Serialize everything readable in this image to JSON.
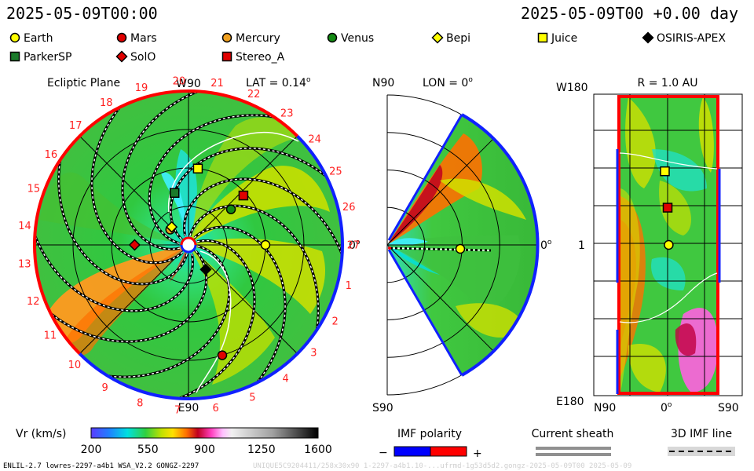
{
  "header": {
    "timestamp_left": "2025-05-09T00:00",
    "timestamp_right": "2025-05-09T00 +0.00 day"
  },
  "legend": {
    "items": [
      {
        "name": "Earth",
        "marker": "circle",
        "color": "#ffff00"
      },
      {
        "name": "Mars",
        "marker": "circle",
        "color": "#e00000"
      },
      {
        "name": "Mercury",
        "marker": "circle",
        "color": "#f0a020"
      },
      {
        "name": "Venus",
        "marker": "circle",
        "color": "#138a13"
      },
      {
        "name": "Bepi",
        "marker": "diamond",
        "color": "#ffff00"
      },
      {
        "name": "Juice",
        "marker": "square",
        "color": "#ffff00"
      },
      {
        "name": "OSIRIS-APEX",
        "marker": "diamond",
        "color": "#000000"
      },
      {
        "name": "ParkerSP",
        "marker": "square",
        "color": "#1a7a2a"
      },
      {
        "name": "SolO",
        "marker": "diamond",
        "color": "#e00000"
      },
      {
        "name": "Stereo_A",
        "marker": "square",
        "color": "#e00000"
      }
    ]
  },
  "panels": {
    "ecliptic": {
      "title": "Ecliptic Plane",
      "lat_label": "LAT = 0.14",
      "lat_degree": "o",
      "top_label": "W90",
      "bottom_label": "E90",
      "right_label": "0",
      "right_degree": "o",
      "carrington_numbers": [
        "1",
        "2",
        "3",
        "4",
        "5",
        "6",
        "7",
        "8",
        "9",
        "10",
        "11",
        "12",
        "13",
        "14",
        "15",
        "16",
        "17",
        "18",
        "19",
        "20",
        "21",
        "22",
        "23",
        "24",
        "25",
        "26",
        "27"
      ]
    },
    "meridional": {
      "lon_label": "LON = 0",
      "lon_degree": "o",
      "top_label": "N90",
      "bottom_label": "S90",
      "right_label": "0",
      "right_degree": "o"
    },
    "map": {
      "title": "R = 1.0 AU",
      "top_left_label": "W180",
      "bottom_left_label": "E180",
      "mid_left_label": "1",
      "bottom_labels": [
        "N90",
        "0",
        "S90"
      ],
      "bottom_mid_degree": "o"
    }
  },
  "colorbar": {
    "label": "Vr (km/s)",
    "ticks": [
      "200",
      "550",
      "900",
      "1250",
      "1600"
    ],
    "range": [
      200,
      1600
    ]
  },
  "imf_polarity": {
    "label": "IMF polarity",
    "minus": "−",
    "plus": "+",
    "neg_color": "#0000ff",
    "pos_color": "#ff0000"
  },
  "current_sheath": {
    "label": "Current sheath"
  },
  "imf_line": {
    "label": "3D IMF line"
  },
  "footer": {
    "model_info": "ENLIL-2.7 lowres-2297-a4b1 WSA_V2.2 GONGZ-2297",
    "run_info": "UNIQUE5C9204411/258x30x90 1-2297-a4b1.10-...ufrmd-1g53d5d2.gongz-2025-05-09T00   2025-05-09"
  },
  "chart_data": [
    {
      "type": "heatmap",
      "panel": "ecliptic-plane",
      "title": "Ecliptic Plane",
      "lat_deg": 0.14,
      "bodies": [
        {
          "name": "Earth",
          "r_au": 1.0,
          "lon_deg": 0
        },
        {
          "name": "Mercury",
          "r_au": 0.31,
          "lon_deg": 140
        },
        {
          "name": "Venus",
          "r_au": 0.72,
          "lon_deg": 40
        },
        {
          "name": "Mars",
          "r_au": 1.5,
          "lon_deg": -73
        },
        {
          "name": "Stereo_A",
          "r_au": 0.96,
          "lon_deg": 42
        },
        {
          "name": "Juice",
          "r_au": 1.0,
          "lon_deg": 83
        },
        {
          "name": "ParkerSP",
          "r_au": 0.7,
          "lon_deg": 105
        },
        {
          "name": "Bepi",
          "r_au": 0.32,
          "lon_deg": 133
        },
        {
          "name": "SolO",
          "r_au": 0.7,
          "lon_deg": 180
        },
        {
          "name": "OSIRIS-APEX",
          "r_au": 0.39,
          "lon_deg": -55
        }
      ]
    },
    {
      "type": "heatmap",
      "panel": "meridional-plane",
      "lon_deg": 0,
      "bodies": [
        {
          "name": "Earth",
          "r_au": 1.0,
          "lat_deg": 0
        }
      ]
    },
    {
      "type": "heatmap",
      "panel": "shell-map",
      "r_au": 1.0,
      "bodies": [
        {
          "name": "Earth",
          "lat_deg": -2,
          "lon_deg": 0
        },
        {
          "name": "Stereo_A",
          "lat_deg": 0,
          "lon_deg": 42
        },
        {
          "name": "Juice",
          "lat_deg": 5,
          "lon_deg": 83
        }
      ]
    }
  ]
}
